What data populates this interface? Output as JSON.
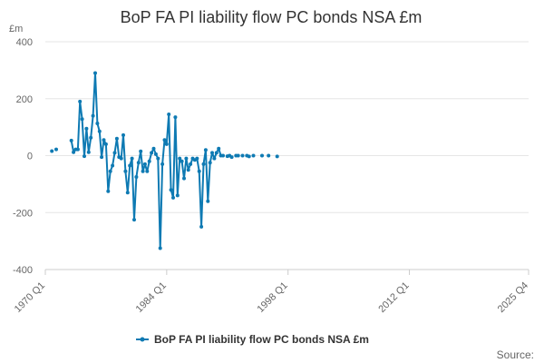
{
  "chart_data": {
    "type": "line",
    "title": "BoP FA PI liability flow PC bonds NSA £m",
    "ylabel": "£m",
    "xlabel": "",
    "ylim": [
      -400,
      400
    ],
    "yticks": [
      400,
      200,
      0,
      -200,
      -400
    ],
    "xlim": [
      "1970 Q1",
      "2025 Q4"
    ],
    "xticks": [
      "1970 Q1",
      "1984 Q1",
      "1998 Q1",
      "2012 Q1",
      "2025 Q4"
    ],
    "grid": true,
    "legend_position": "bottom",
    "series": [
      {
        "name": "BoP FA PI liability flow PC bonds NSA £m",
        "color": "#0e7ab3",
        "points": [
          [
            "1970 Q4",
            16
          ],
          [
            "1971 Q2",
            22
          ],
          [
            "1973 Q1",
            53
          ],
          [
            "1973 Q2",
            12
          ],
          [
            "1973 Q3",
            22
          ],
          [
            "1973 Q4",
            22
          ],
          [
            "1974 Q1",
            190
          ],
          [
            "1974 Q2",
            128
          ],
          [
            "1974 Q3",
            -2
          ],
          [
            "1974 Q4",
            95
          ],
          [
            "1975 Q1",
            12
          ],
          [
            "1975 Q2",
            63
          ],
          [
            "1975 Q3",
            140
          ],
          [
            "1975 Q4",
            290
          ],
          [
            "1976 Q1",
            113
          ],
          [
            "1976 Q2",
            85
          ],
          [
            "1976 Q3",
            -5
          ],
          [
            "1976 Q4",
            55
          ],
          [
            "1977 Q1",
            40
          ],
          [
            "1977 Q2",
            -125
          ],
          [
            "1977 Q3",
            -55
          ],
          [
            "1977 Q4",
            -35
          ],
          [
            "1978 Q1",
            10
          ],
          [
            "1978 Q2",
            60
          ],
          [
            "1978 Q3",
            -5
          ],
          [
            "1978 Q4",
            -10
          ],
          [
            "1979 Q1",
            72
          ],
          [
            "1979 Q2",
            -55
          ],
          [
            "1979 Q3",
            -130
          ],
          [
            "1979 Q4",
            -35
          ],
          [
            "1980 Q1",
            -10
          ],
          [
            "1980 Q2",
            -225
          ],
          [
            "1980 Q3",
            -75
          ],
          [
            "1980 Q4",
            -25
          ],
          [
            "1981 Q1",
            15
          ],
          [
            "1981 Q2",
            -55
          ],
          [
            "1981 Q3",
            -30
          ],
          [
            "1981 Q4",
            -55
          ],
          [
            "1982 Q1",
            -20
          ],
          [
            "1982 Q2",
            10
          ],
          [
            "1982 Q3",
            25
          ],
          [
            "1982 Q4",
            5
          ],
          [
            "1983 Q1",
            -10
          ],
          [
            "1983 Q2",
            -325
          ],
          [
            "1983 Q3",
            -30
          ],
          [
            "1983 Q4",
            55
          ],
          [
            "1984 Q1",
            40
          ],
          [
            "1984 Q2",
            145
          ],
          [
            "1984 Q3",
            -120
          ],
          [
            "1984 Q4",
            -148
          ],
          [
            "1985 Q1",
            135
          ],
          [
            "1985 Q2",
            -140
          ],
          [
            "1985 Q3",
            -10
          ],
          [
            "1985 Q4",
            -20
          ],
          [
            "1986 Q1",
            -80
          ],
          [
            "1986 Q2",
            -10
          ],
          [
            "1986 Q3",
            -50
          ],
          [
            "1986 Q4",
            -30
          ],
          [
            "1987 Q1",
            -10
          ],
          [
            "1987 Q2",
            -15
          ],
          [
            "1987 Q3",
            -10
          ],
          [
            "1987 Q4",
            -55
          ],
          [
            "1988 Q1",
            -250
          ],
          [
            "1988 Q2",
            -30
          ],
          [
            "1988 Q3",
            20
          ],
          [
            "1988 Q4",
            -160
          ],
          [
            "1989 Q1",
            -25
          ],
          [
            "1989 Q2",
            10
          ],
          [
            "1989 Q3",
            -10
          ],
          [
            "1989 Q4",
            10
          ],
          [
            "1990 Q1",
            25
          ],
          [
            "1990 Q2",
            0
          ],
          [
            "1990 Q3",
            0
          ],
          [
            "1991 Q1",
            -2
          ],
          [
            "1991 Q2",
            0
          ],
          [
            "1991 Q3",
            -5
          ],
          [
            "1992 Q1",
            0
          ],
          [
            "1992 Q2",
            0
          ],
          [
            "1992 Q4",
            0
          ],
          [
            "1993 Q2",
            0
          ],
          [
            "1993 Q3",
            -3
          ],
          [
            "1994 Q1",
            0
          ],
          [
            "1995 Q1",
            0
          ],
          [
            "1995 Q4",
            0
          ],
          [
            "1996 Q4",
            -3
          ]
        ]
      }
    ]
  },
  "source_label": "Source:"
}
